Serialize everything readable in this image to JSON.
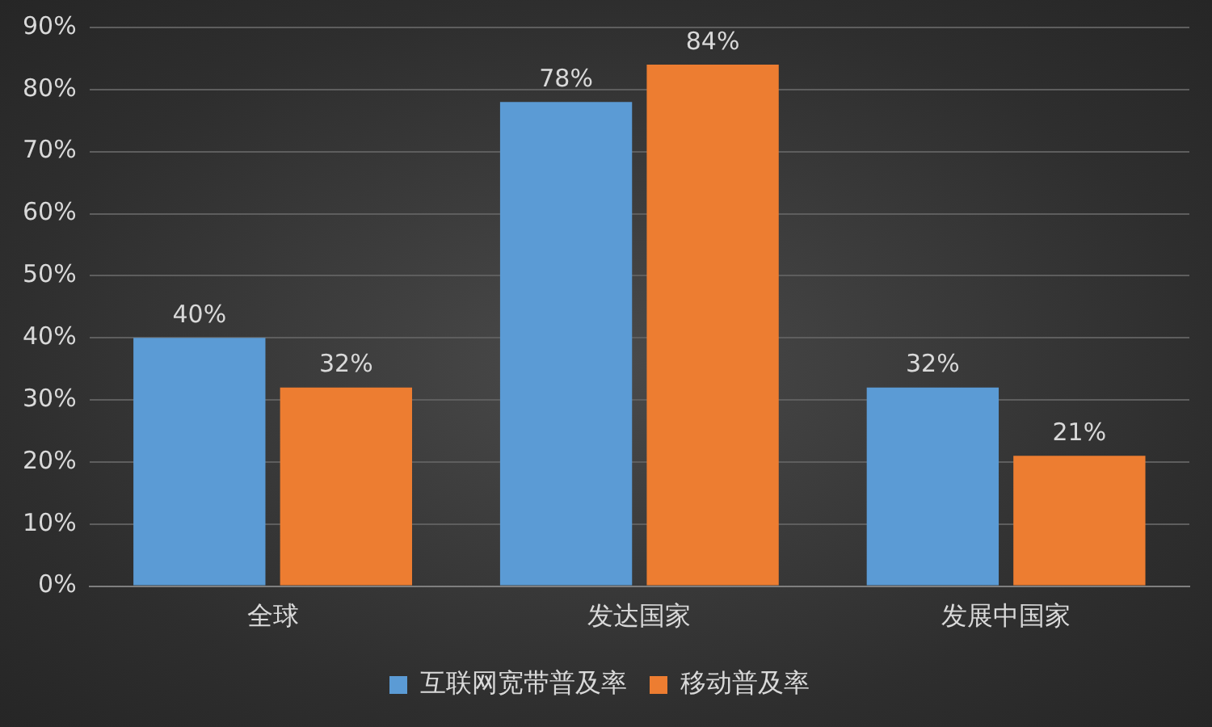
{
  "chart_data": {
    "type": "bar",
    "categories": [
      "全球",
      "发达国家",
      "发展中国家"
    ],
    "series": [
      {
        "name": "互联网宽带普及率",
        "color": "#5b9bd5",
        "values": [
          40,
          78,
          32
        ],
        "value_labels": [
          "40%",
          "78%",
          "32%"
        ]
      },
      {
        "name": "移动普及率",
        "color": "#ed7d31",
        "values": [
          32,
          84,
          21
        ],
        "value_labels": [
          "32%",
          "84%",
          "21%"
        ]
      }
    ],
    "ylim": [
      0,
      90
    ],
    "yticks": [
      {
        "value": 0,
        "label": "0%"
      },
      {
        "value": 10,
        "label": "10%"
      },
      {
        "value": 20,
        "label": "20%"
      },
      {
        "value": 30,
        "label": "30%"
      },
      {
        "value": 40,
        "label": "40%"
      },
      {
        "value": 50,
        "label": "50%"
      },
      {
        "value": 60,
        "label": "60%"
      },
      {
        "value": 70,
        "label": "70%"
      },
      {
        "value": 80,
        "label": "80%"
      },
      {
        "value": 90,
        "label": "90%"
      }
    ],
    "grid": "y",
    "legend": "bottom"
  }
}
